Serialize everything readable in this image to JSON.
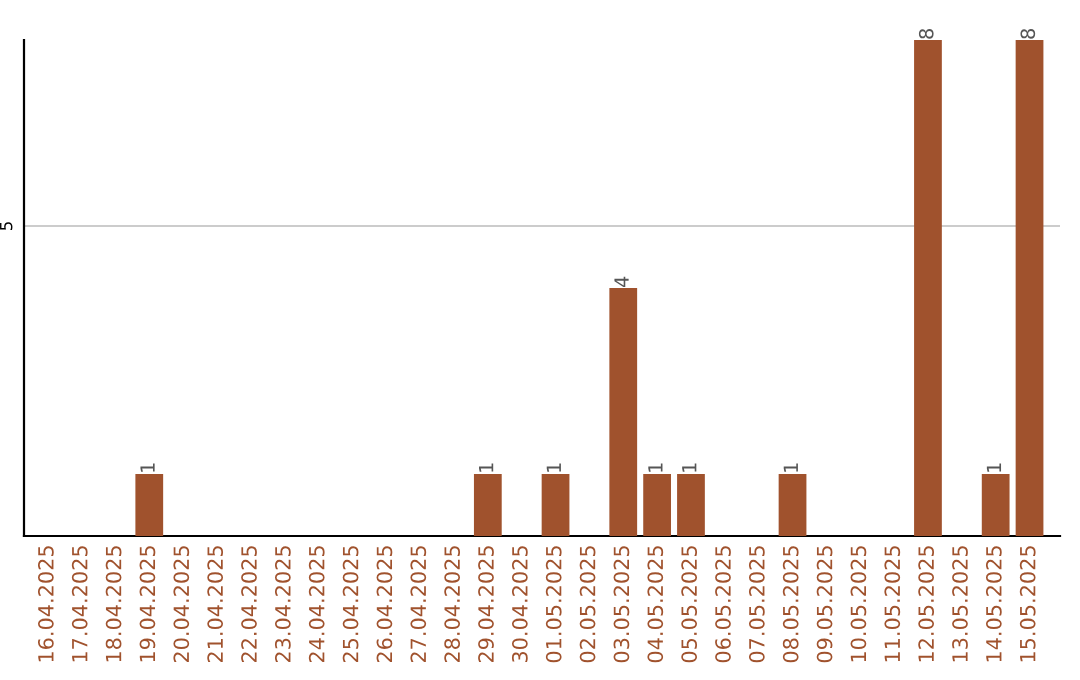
{
  "chart_data": {
    "type": "bar",
    "categories": [
      "16.04.2025",
      "17.04.2025",
      "18.04.2025",
      "19.04.2025",
      "20.04.2025",
      "21.04.2025",
      "22.04.2025",
      "23.04.2025",
      "24.04.2025",
      "25.04.2025",
      "26.04.2025",
      "27.04.2025",
      "28.04.2025",
      "29.04.2025",
      "30.04.2025",
      "01.05.2025",
      "02.05.2025",
      "03.05.2025",
      "04.05.2025",
      "05.05.2025",
      "06.05.2025",
      "07.05.2025",
      "08.05.2025",
      "09.05.2025",
      "10.05.2025",
      "11.05.2025",
      "12.05.2025",
      "13.05.2025",
      "14.05.2025",
      "15.05.2025"
    ],
    "values": [
      0,
      0,
      0,
      1,
      0,
      0,
      0,
      0,
      0,
      0,
      0,
      0,
      0,
      1,
      0,
      1,
      0,
      4,
      1,
      1,
      0,
      0,
      1,
      0,
      0,
      0,
      8,
      0,
      1,
      8
    ],
    "value_labels": [
      null,
      null,
      null,
      "1",
      null,
      null,
      null,
      null,
      null,
      null,
      null,
      null,
      null,
      "1",
      null,
      "1",
      null,
      "4",
      "1",
      "1",
      null,
      null,
      "1",
      null,
      null,
      null,
      "8",
      null,
      "1",
      "8"
    ],
    "color": "#a0522d",
    "ylim": [
      0,
      8
    ],
    "yticks": [
      5
    ],
    "grid": "y"
  }
}
